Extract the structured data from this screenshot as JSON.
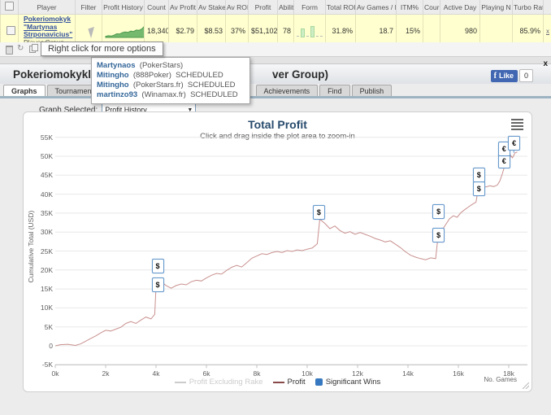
{
  "results_table": {
    "headers": [
      "",
      "Player",
      "Filter",
      "Profit History",
      "Count",
      "Av Profit",
      "Av Stake",
      "Av ROI",
      "Profit",
      "Abilit",
      "Form",
      "Total ROI",
      "Av Games / D",
      "ITM%",
      "Cour",
      "Active Day",
      "Playing N",
      "Turbo Rati",
      ""
    ],
    "row": {
      "player_link_lines": [
        "Pokeriomokyk",
        "\"Martynas",
        "Strponavicius\""
      ],
      "player_sub": "Player Group",
      "filter": "",
      "sparkline": [
        1,
        1.5,
        1.2,
        2,
        3.2,
        3,
        4.2,
        4.8,
        4.4,
        5.6,
        5.2,
        6.5,
        6.2,
        7.5,
        10
      ],
      "count": "18,340",
      "av_profit": "$2.79",
      "av_stake": "$8.53",
      "av_roi": "37%",
      "profit": "$51,102",
      "ability": "78",
      "form_bars": [
        0,
        9,
        0,
        12,
        0,
        0
      ],
      "total_roi": "31.8%",
      "av_games_day": "18.7",
      "itm": "15%",
      "cour": "",
      "active_day": "980",
      "playing_now": "",
      "turbo_ratio": "85.9%",
      "remove": "x"
    }
  },
  "toolbar": {
    "tooltip": "Right click for more options",
    "refresh_glyph": "↻"
  },
  "context_menu": {
    "items": [
      {
        "name": "Martynaos",
        "site": "(PokerStars)",
        "status": ""
      },
      {
        "name": "Mitingho",
        "site": "(888Poker)",
        "status": "SCHEDULED"
      },
      {
        "name": "Mitingho",
        "site": "(PokerStars.fr)",
        "status": "SCHEDULED"
      },
      {
        "name": "martinzo93",
        "site": "(Winamax.fr)",
        "status": "SCHEDULED"
      }
    ]
  },
  "panel": {
    "title_left": "Pokeriomokykla.co",
    "title_right": "ver Group)",
    "close": "x",
    "facebook": {
      "f": "f",
      "like_label": "Like",
      "count": "0"
    }
  },
  "tabs_left": [
    {
      "label": "Graphs",
      "active": true
    },
    {
      "label": "Tournaments",
      "active": false
    }
  ],
  "tabs_right": [
    {
      "label": "Achievements",
      "active": false
    },
    {
      "label": "Find",
      "active": false
    },
    {
      "label": "Publish",
      "active": false
    }
  ],
  "graph_select": {
    "label": "Graph Selected:",
    "value": "Profit History",
    "arrow": "▼"
  },
  "chart_data": {
    "type": "line",
    "title": "Total Profit",
    "subtitle": "Click and drag inside the plot area to zoom-in",
    "ylabel": "Cumulative Total (USD)",
    "xlabel": "No. Games",
    "ylim": [
      -5000,
      55000
    ],
    "xlim": [
      0,
      18340
    ],
    "grid": "horizontal",
    "legend_position": "bottom",
    "yticks": [
      [
        -5000,
        "-5K"
      ],
      [
        0,
        "0"
      ],
      [
        5000,
        "5K"
      ],
      [
        10000,
        "10K"
      ],
      [
        15000,
        "15K"
      ],
      [
        20000,
        "20K"
      ],
      [
        25000,
        "25K"
      ],
      [
        30000,
        "30K"
      ],
      [
        35000,
        "35K"
      ],
      [
        40000,
        "40K"
      ],
      [
        45000,
        "45K"
      ],
      [
        50000,
        "50K"
      ],
      [
        55000,
        "55K"
      ]
    ],
    "xticks": [
      [
        0,
        "0k"
      ],
      [
        2000,
        "2k"
      ],
      [
        4000,
        "4k"
      ],
      [
        6000,
        "6k"
      ],
      [
        8000,
        "8k"
      ],
      [
        10000,
        "10k"
      ],
      [
        12000,
        "12k"
      ],
      [
        14000,
        "14k"
      ],
      [
        16000,
        "16k"
      ],
      [
        18000,
        "18k"
      ]
    ],
    "legend": [
      {
        "label": "Profit Excluding Rake",
        "type": "line",
        "color": "#cccccc",
        "disabled": true
      },
      {
        "label": "Profit",
        "type": "line",
        "color": "#8a4a4a",
        "disabled": false
      },
      {
        "label": "Significant Wins",
        "type": "square",
        "color": "#3779c0",
        "disabled": false
      }
    ],
    "series": [
      {
        "name": "Profit",
        "color": "#c9908f",
        "points": [
          [
            0,
            0
          ],
          [
            200,
            300
          ],
          [
            500,
            400
          ],
          [
            800,
            100
          ],
          [
            1000,
            500
          ],
          [
            1200,
            1200
          ],
          [
            1400,
            1900
          ],
          [
            1600,
            2600
          ],
          [
            1800,
            3400
          ],
          [
            2000,
            4100
          ],
          [
            2200,
            3900
          ],
          [
            2400,
            4400
          ],
          [
            2600,
            4900
          ],
          [
            2800,
            5900
          ],
          [
            3000,
            6400
          ],
          [
            3200,
            5900
          ],
          [
            3400,
            6800
          ],
          [
            3600,
            7600
          ],
          [
            3800,
            7100
          ],
          [
            3950,
            8300
          ],
          [
            4000,
            15600
          ],
          [
            4200,
            16900
          ],
          [
            4400,
            15900
          ],
          [
            4600,
            15200
          ],
          [
            4800,
            15900
          ],
          [
            5000,
            16300
          ],
          [
            5200,
            16100
          ],
          [
            5400,
            16900
          ],
          [
            5600,
            17300
          ],
          [
            5800,
            17100
          ],
          [
            6000,
            17900
          ],
          [
            6200,
            18600
          ],
          [
            6400,
            19100
          ],
          [
            6600,
            18900
          ],
          [
            6800,
            19900
          ],
          [
            7000,
            20700
          ],
          [
            7200,
            21200
          ],
          [
            7400,
            20800
          ],
          [
            7600,
            21900
          ],
          [
            7800,
            23100
          ],
          [
            8000,
            23700
          ],
          [
            8200,
            24300
          ],
          [
            8400,
            24100
          ],
          [
            8600,
            24600
          ],
          [
            8800,
            24900
          ],
          [
            9000,
            24600
          ],
          [
            9200,
            25100
          ],
          [
            9400,
            24900
          ],
          [
            9600,
            25300
          ],
          [
            9800,
            25100
          ],
          [
            10000,
            25500
          ],
          [
            10200,
            25800
          ],
          [
            10400,
            26900
          ],
          [
            10500,
            33400
          ],
          [
            10700,
            32300
          ],
          [
            10900,
            30900
          ],
          [
            11100,
            31600
          ],
          [
            11300,
            30400
          ],
          [
            11500,
            29700
          ],
          [
            11700,
            30100
          ],
          [
            11900,
            29400
          ],
          [
            12100,
            29900
          ],
          [
            12300,
            29400
          ],
          [
            12500,
            28900
          ],
          [
            12700,
            28300
          ],
          [
            12900,
            27900
          ],
          [
            13100,
            27400
          ],
          [
            13300,
            27700
          ],
          [
            13500,
            26800
          ],
          [
            13700,
            25900
          ],
          [
            13900,
            24800
          ],
          [
            14100,
            23900
          ],
          [
            14300,
            23400
          ],
          [
            14500,
            23000
          ],
          [
            14700,
            22700
          ],
          [
            14900,
            23200
          ],
          [
            15100,
            23000
          ],
          [
            15200,
            29300
          ],
          [
            15350,
            30500
          ],
          [
            15500,
            32000
          ],
          [
            15650,
            33500
          ],
          [
            15800,
            34300
          ],
          [
            15950,
            33900
          ],
          [
            16100,
            35100
          ],
          [
            16250,
            35900
          ],
          [
            16400,
            36600
          ],
          [
            16550,
            37300
          ],
          [
            16700,
            37900
          ],
          [
            16800,
            41800
          ],
          [
            16950,
            42100
          ],
          [
            17100,
            41900
          ],
          [
            17250,
            42200
          ],
          [
            17400,
            42000
          ],
          [
            17550,
            42400
          ],
          [
            17650,
            43500
          ],
          [
            17750,
            45500
          ],
          [
            17850,
            47800
          ],
          [
            17950,
            49000
          ],
          [
            18000,
            48500
          ],
          [
            18080,
            50200
          ],
          [
            18150,
            49600
          ],
          [
            18250,
            50900
          ],
          [
            18340,
            51100
          ]
        ]
      }
    ],
    "markers": [
      {
        "x": 4050,
        "v": 16300,
        "symbol": "$",
        "stem": 15600
      },
      {
        "x": 4050,
        "v": 21300,
        "symbol": "$"
      },
      {
        "x": 10450,
        "v": 35500,
        "symbol": "$",
        "stem": 33400
      },
      {
        "x": 15200,
        "v": 29400,
        "symbol": "$",
        "stem": 29300
      },
      {
        "x": 15200,
        "v": 35700,
        "symbol": "$"
      },
      {
        "x": 16800,
        "v": 41600,
        "symbol": "$",
        "stem": 41800
      },
      {
        "x": 16800,
        "v": 45300,
        "symbol": "$"
      },
      {
        "x": 17800,
        "v": 48900,
        "symbol": "€",
        "stem": 47800
      },
      {
        "x": 17800,
        "v": 52100,
        "symbol": "€"
      },
      {
        "x": 18200,
        "v": 53600,
        "symbol": "€",
        "stem": 50900
      }
    ]
  }
}
